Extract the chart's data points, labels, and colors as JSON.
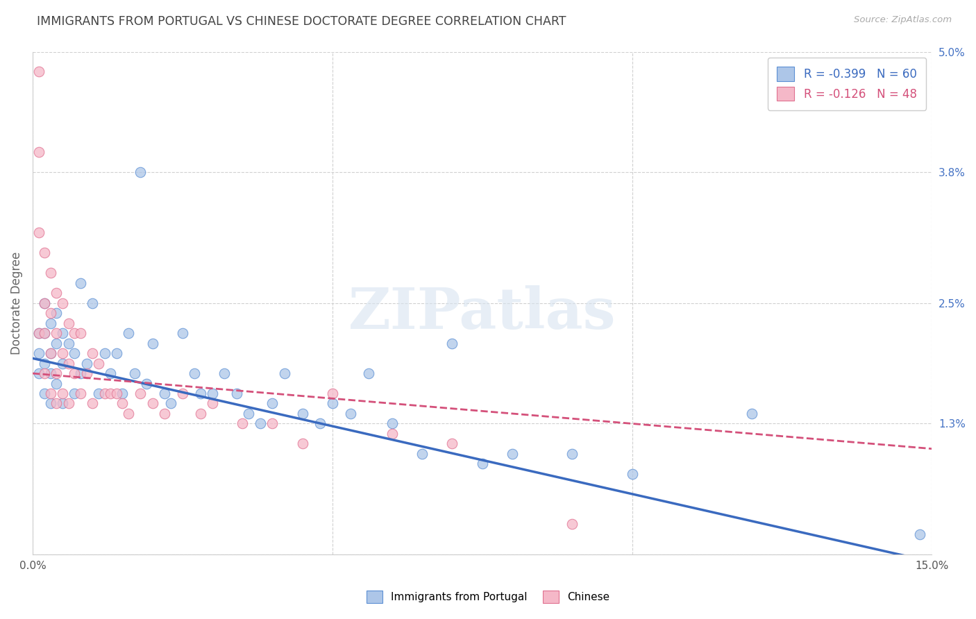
{
  "title": "IMMIGRANTS FROM PORTUGAL VS CHINESE DOCTORATE DEGREE CORRELATION CHART",
  "source": "Source: ZipAtlas.com",
  "ylabel": "Doctorate Degree",
  "xlim": [
    0.0,
    0.15
  ],
  "ylim": [
    0.0,
    0.05
  ],
  "xtick_positions": [
    0.0,
    0.05,
    0.1,
    0.15
  ],
  "xtick_labels": [
    "0.0%",
    "",
    "",
    "15.0%"
  ],
  "yticks_right": [
    0.0,
    0.013,
    0.025,
    0.038,
    0.05
  ],
  "ytick_labels_right": [
    "",
    "1.3%",
    "2.5%",
    "3.8%",
    "5.0%"
  ],
  "series1_label": "Immigrants from Portugal",
  "series1_R": "-0.399",
  "series1_N": "60",
  "series1_color": "#adc6e8",
  "series1_edge_color": "#5b8fd4",
  "series1_line_color": "#3a6abf",
  "series2_label": "Chinese",
  "series2_R": "-0.126",
  "series2_N": "48",
  "series2_color": "#f5b8c8",
  "series2_edge_color": "#e07090",
  "series2_line_color": "#d4507a",
  "background_color": "#ffffff",
  "grid_color": "#d0d0d0",
  "title_color": "#444444",
  "watermark": "ZIPatlas",
  "blue_x": [
    0.001,
    0.001,
    0.001,
    0.002,
    0.002,
    0.002,
    0.002,
    0.003,
    0.003,
    0.003,
    0.003,
    0.004,
    0.004,
    0.004,
    0.005,
    0.005,
    0.005,
    0.006,
    0.007,
    0.007,
    0.008,
    0.008,
    0.009,
    0.01,
    0.011,
    0.012,
    0.013,
    0.014,
    0.015,
    0.016,
    0.017,
    0.018,
    0.019,
    0.02,
    0.022,
    0.023,
    0.025,
    0.027,
    0.028,
    0.03,
    0.032,
    0.034,
    0.036,
    0.038,
    0.04,
    0.042,
    0.045,
    0.048,
    0.05,
    0.053,
    0.056,
    0.06,
    0.065,
    0.07,
    0.075,
    0.08,
    0.09,
    0.1,
    0.12,
    0.148
  ],
  "blue_y": [
    0.022,
    0.02,
    0.018,
    0.025,
    0.022,
    0.019,
    0.016,
    0.023,
    0.02,
    0.018,
    0.015,
    0.024,
    0.021,
    0.017,
    0.022,
    0.019,
    0.015,
    0.021,
    0.02,
    0.016,
    0.027,
    0.018,
    0.019,
    0.025,
    0.016,
    0.02,
    0.018,
    0.02,
    0.016,
    0.022,
    0.018,
    0.038,
    0.017,
    0.021,
    0.016,
    0.015,
    0.022,
    0.018,
    0.016,
    0.016,
    0.018,
    0.016,
    0.014,
    0.013,
    0.015,
    0.018,
    0.014,
    0.013,
    0.015,
    0.014,
    0.018,
    0.013,
    0.01,
    0.021,
    0.009,
    0.01,
    0.01,
    0.008,
    0.014,
    0.002
  ],
  "pink_x": [
    0.001,
    0.001,
    0.001,
    0.001,
    0.002,
    0.002,
    0.002,
    0.002,
    0.003,
    0.003,
    0.003,
    0.003,
    0.004,
    0.004,
    0.004,
    0.004,
    0.005,
    0.005,
    0.005,
    0.006,
    0.006,
    0.006,
    0.007,
    0.007,
    0.008,
    0.008,
    0.009,
    0.01,
    0.01,
    0.011,
    0.012,
    0.013,
    0.014,
    0.015,
    0.016,
    0.018,
    0.02,
    0.022,
    0.025,
    0.028,
    0.03,
    0.035,
    0.04,
    0.045,
    0.05,
    0.06,
    0.07,
    0.09
  ],
  "pink_y": [
    0.048,
    0.04,
    0.032,
    0.022,
    0.03,
    0.025,
    0.022,
    0.018,
    0.028,
    0.024,
    0.02,
    0.016,
    0.026,
    0.022,
    0.018,
    0.015,
    0.025,
    0.02,
    0.016,
    0.023,
    0.019,
    0.015,
    0.022,
    0.018,
    0.022,
    0.016,
    0.018,
    0.02,
    0.015,
    0.019,
    0.016,
    0.016,
    0.016,
    0.015,
    0.014,
    0.016,
    0.015,
    0.014,
    0.016,
    0.014,
    0.015,
    0.013,
    0.013,
    0.011,
    0.016,
    0.012,
    0.011,
    0.003
  ]
}
